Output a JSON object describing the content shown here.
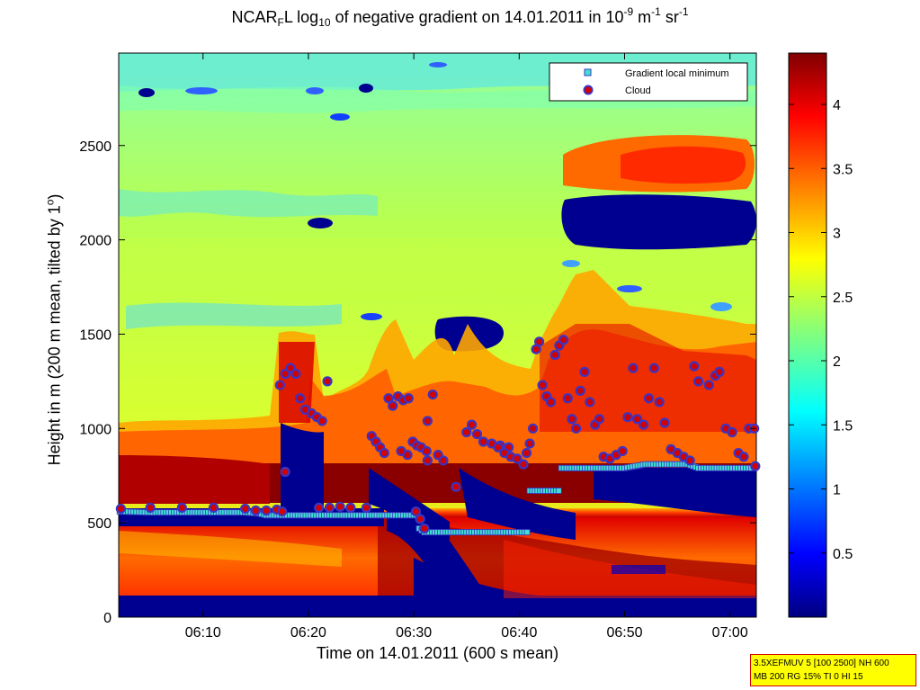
{
  "title": {
    "part1": "NCAR",
    "sub1": "F",
    "part2": "L log",
    "sub2": "10",
    "part3": " of negative gradient on 14.01.2011 in 10",
    "sup1": "-9",
    "part4": " m",
    "sup2": "-1",
    "part5": " sr",
    "sup3": "-1"
  },
  "xlabel": "Time on 14.01.2011 (600 s mean)",
  "ylabel": {
    "main": "Height in m (200 m mean, tilted by 1",
    "sup": "o",
    "end": ")"
  },
  "legend": {
    "items": [
      "Gradient local minimum",
      "Cloud"
    ]
  },
  "stamp": {
    "line1": "3.5XEFMUV 5 [100 2500] NH 600",
    "line2": "MB 200 RG 15% TI 0 HI 15"
  },
  "colors": {
    "marker_minimum": "#40e0d0",
    "marker_cloud_face": "#d40000",
    "marker_cloud_edge": "#3a34c4"
  },
  "chart_data": {
    "type": "heatmap",
    "colormap": "jet",
    "x_ticks": [
      "06:10",
      "06:20",
      "06:30",
      "06:40",
      "06:50",
      "07:00"
    ],
    "x_tick_minutes": [
      10,
      20,
      30,
      40,
      50,
      60
    ],
    "xlim_minutes_after_0600": [
      2,
      62.5
    ],
    "y_ticks": [
      0,
      500,
      1000,
      1500,
      2000,
      2500
    ],
    "ylim": [
      0,
      2990
    ],
    "colorbar_ticks": [
      "0.5",
      "1",
      "1.5",
      "2",
      "2.5",
      "3",
      "3.5",
      "4"
    ],
    "colorbar_tick_values": [
      0.5,
      1,
      1.5,
      2,
      2.5,
      3,
      3.5,
      4
    ],
    "clim": [
      0,
      4.4
    ],
    "series": [
      {
        "name": "Gradient local minimum",
        "points": [
          [
            2.1,
            560
          ],
          [
            5,
            555
          ],
          [
            8,
            555
          ],
          [
            11,
            555
          ],
          [
            14,
            555
          ],
          [
            15.3,
            550
          ],
          [
            16,
            540
          ],
          [
            19,
            540
          ],
          [
            22,
            540
          ],
          [
            25,
            540
          ],
          [
            28,
            540
          ],
          [
            30,
            540
          ],
          [
            30.5,
            470
          ],
          [
            31,
            450
          ],
          [
            33,
            450
          ],
          [
            35,
            450
          ],
          [
            37,
            450
          ],
          [
            39,
            450
          ],
          [
            40.5,
            450
          ],
          [
            41,
            670
          ],
          [
            42,
            670
          ],
          [
            43,
            670
          ],
          [
            44,
            790
          ],
          [
            46,
            790
          ],
          [
            48,
            790
          ],
          [
            50,
            790
          ],
          [
            52,
            810
          ],
          [
            54,
            810
          ],
          [
            56,
            810
          ],
          [
            57,
            790
          ],
          [
            59,
            790
          ],
          [
            61,
            790
          ],
          [
            62.3,
            790
          ]
        ]
      },
      {
        "name": "Cloud",
        "points": [
          [
            2.2,
            575
          ],
          [
            5,
            580
          ],
          [
            8,
            580
          ],
          [
            11,
            580
          ],
          [
            14,
            575
          ],
          [
            15,
            565
          ],
          [
            16,
            565
          ],
          [
            17,
            570
          ],
          [
            17.5,
            560
          ],
          [
            17.8,
            770
          ],
          [
            17.3,
            1230
          ],
          [
            17.8,
            1290
          ],
          [
            18.3,
            1320
          ],
          [
            18.8,
            1290
          ],
          [
            19.2,
            1160
          ],
          [
            19.7,
            1100
          ],
          [
            20.3,
            1080
          ],
          [
            20.8,
            1060
          ],
          [
            21.3,
            1040
          ],
          [
            21.8,
            1250
          ],
          [
            21,
            580
          ],
          [
            22,
            580
          ],
          [
            23,
            585
          ],
          [
            24,
            580
          ],
          [
            25.5,
            580
          ],
          [
            26,
            960
          ],
          [
            26.4,
            930
          ],
          [
            26.8,
            900
          ],
          [
            27.2,
            870
          ],
          [
            27.6,
            1160
          ],
          [
            28,
            1120
          ],
          [
            28.5,
            1170
          ],
          [
            29,
            1150
          ],
          [
            29.5,
            1160
          ],
          [
            28.8,
            880
          ],
          [
            29.4,
            860
          ],
          [
            29.9,
            930
          ],
          [
            30.3,
            910
          ],
          [
            30.7,
            900
          ],
          [
            31.2,
            880
          ],
          [
            31.3,
            1040
          ],
          [
            31.8,
            1180
          ],
          [
            31.3,
            830
          ],
          [
            32.3,
            860
          ],
          [
            32.8,
            830
          ],
          [
            30.2,
            560
          ],
          [
            30.6,
            520
          ],
          [
            31,
            470
          ],
          [
            34,
            690
          ],
          [
            35,
            980
          ],
          [
            35.5,
            1020
          ],
          [
            36,
            970
          ],
          [
            36.6,
            930
          ],
          [
            37.4,
            920
          ],
          [
            38.2,
            910
          ],
          [
            39,
            900
          ],
          [
            38,
            900
          ],
          [
            38.6,
            870
          ],
          [
            39.2,
            850
          ],
          [
            39.8,
            840
          ],
          [
            40.4,
            810
          ],
          [
            40.7,
            870
          ],
          [
            41,
            920
          ],
          [
            41.3,
            1000
          ],
          [
            41.6,
            1420
          ],
          [
            41.9,
            1460
          ],
          [
            42.2,
            1230
          ],
          [
            42.6,
            1170
          ],
          [
            43,
            1140
          ],
          [
            43.4,
            1390
          ],
          [
            43.8,
            1440
          ],
          [
            44.2,
            1470
          ],
          [
            44.6,
            1160
          ],
          [
            45,
            1050
          ],
          [
            45.4,
            1000
          ],
          [
            45.8,
            1200
          ],
          [
            46.2,
            1300
          ],
          [
            46.7,
            1140
          ],
          [
            47.2,
            1020
          ],
          [
            47.6,
            1050
          ],
          [
            48,
            850
          ],
          [
            48.6,
            840
          ],
          [
            49.2,
            860
          ],
          [
            49.8,
            880
          ],
          [
            50.3,
            1060
          ],
          [
            50.8,
            1320
          ],
          [
            51.2,
            1050
          ],
          [
            51.8,
            1020
          ],
          [
            52.3,
            1160
          ],
          [
            52.8,
            1320
          ],
          [
            53.3,
            1140
          ],
          [
            53.8,
            1030
          ],
          [
            54.4,
            890
          ],
          [
            55,
            870
          ],
          [
            55.6,
            850
          ],
          [
            56.2,
            830
          ],
          [
            56.6,
            1330
          ],
          [
            57,
            1250
          ],
          [
            58,
            1230
          ],
          [
            58.6,
            1280
          ],
          [
            59,
            1300
          ],
          [
            59.6,
            1000
          ],
          [
            60.2,
            980
          ],
          [
            60.8,
            870
          ],
          [
            61.3,
            850
          ],
          [
            61.8,
            1000
          ],
          [
            62.3,
            1000
          ],
          [
            62.4,
            800
          ]
        ]
      }
    ]
  }
}
